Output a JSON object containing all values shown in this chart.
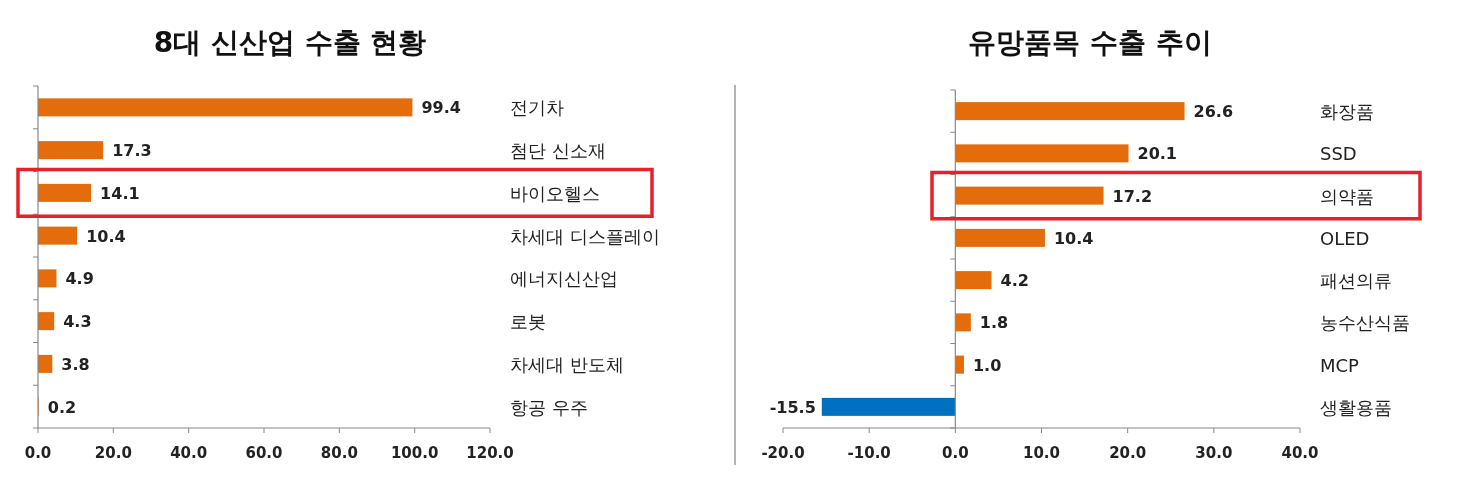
{
  "chart_data": [
    {
      "type": "bar",
      "title": "8대 신산업 수출 현황",
      "categories": [
        "전기차",
        "첨단 신소재",
        "바이오헬스",
        "차세대 디스플레이",
        "에너지신산업",
        "로봇",
        "차세대 반도체",
        "항공 우주"
      ],
      "series": [
        {
          "color": "#e46c0a",
          "values": [
            99.4,
            17.3,
            14.1,
            10.4,
            4.9,
            4.3,
            3.8,
            0.2
          ],
          "value_labels": [
            "99.4",
            "17.3",
            "14.1",
            "10.4",
            "4.9",
            "4.3",
            "3.8",
            "0.2"
          ]
        }
      ],
      "xlim": [
        0,
        120
      ],
      "xticks": [
        {
          "value": 0,
          "label": "0.0"
        },
        {
          "value": 20,
          "label": "20.0"
        },
        {
          "value": 40,
          "label": "40.0"
        },
        {
          "value": 60,
          "label": "60.0"
        },
        {
          "value": 80,
          "label": "80.0"
        },
        {
          "value": 100,
          "label": "100.0"
        },
        {
          "value": 120,
          "label": "120.0"
        }
      ],
      "orientation": "horizontal"
    },
    {
      "type": "bar",
      "title": "유망품목 수출 추이",
      "categories": [
        "화장품",
        "SSD",
        "의약품",
        "OLED",
        "패션의류",
        "농수산식품",
        "MCP",
        "생활용품"
      ],
      "series": [
        {
          "colors": [
            "#e46c0a",
            "#e46c0a",
            "#e46c0a",
            "#e46c0a",
            "#e46c0a",
            "#e46c0a",
            "#e46c0a",
            "#0070c0"
          ],
          "values": [
            26.6,
            20.1,
            17.2,
            10.4,
            4.2,
            1.8,
            1.0,
            -15.5
          ],
          "value_labels": [
            "26.6",
            "20.1",
            "17.2",
            "10.4",
            "4.2",
            "1.8",
            "1.0",
            "-15.5"
          ]
        }
      ],
      "xlim": [
        -20,
        40
      ],
      "xticks": [
        {
          "value": -20,
          "label": "-20.0"
        },
        {
          "value": -10,
          "label": "-10.0"
        },
        {
          "value": 0,
          "label": "0.0"
        },
        {
          "value": 10,
          "label": "10.0"
        },
        {
          "value": 20,
          "label": "20.0"
        },
        {
          "value": 30,
          "label": "30.0"
        },
        {
          "value": 40,
          "label": "40.0"
        }
      ],
      "orientation": "horizontal"
    }
  ]
}
